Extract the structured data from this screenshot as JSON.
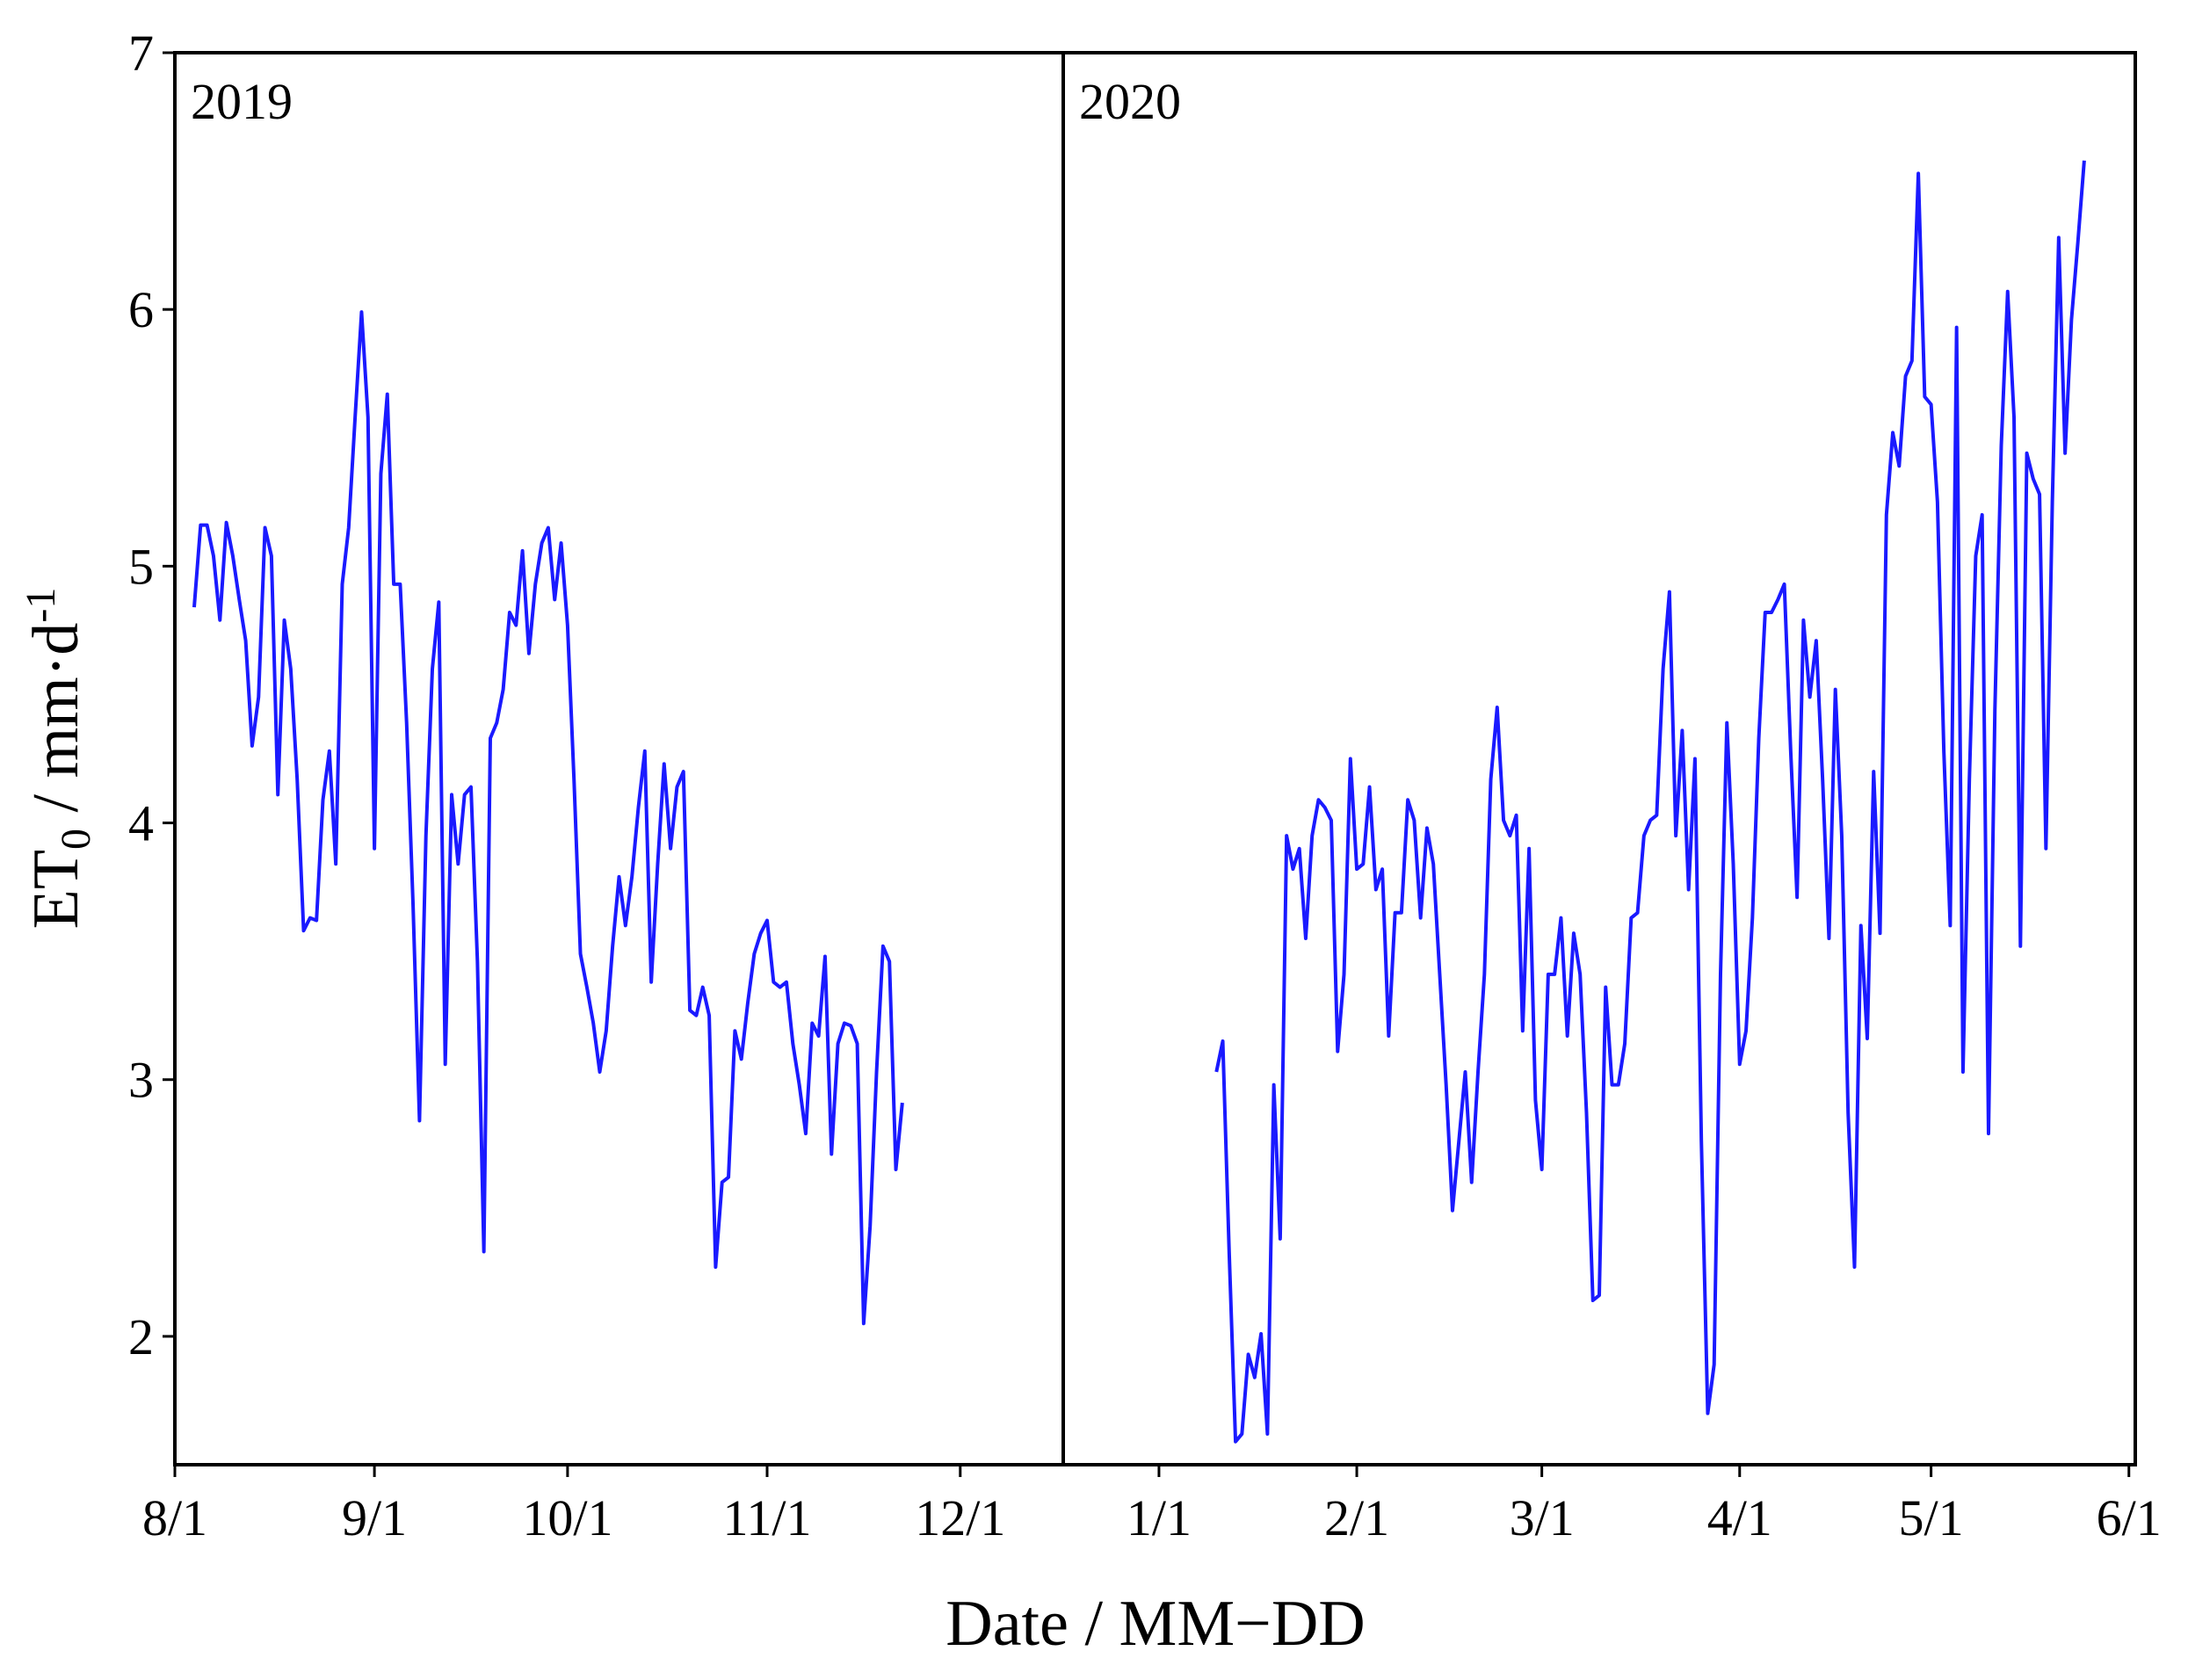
{
  "x_label": "Date / MM−DD",
  "chart_data": [
    {
      "type": "line",
      "annotation": "2019",
      "y_label": {
        "main": "ET",
        "sub": "0",
        "unit": " / mm·d",
        "sup": "-1"
      },
      "color": "#1a1aff",
      "xlim": [
        0,
        138
      ],
      "ylim": [
        1.5,
        7
      ],
      "yticks": [
        2,
        3,
        4,
        5,
        6,
        7
      ],
      "xticks": [
        {
          "value": 0,
          "label": "8/1"
        },
        {
          "value": 31,
          "label": "9/1"
        },
        {
          "value": 61,
          "label": "10/1"
        },
        {
          "value": 92,
          "label": "11/1"
        },
        {
          "value": 122,
          "label": "12/1"
        }
      ],
      "x": [
        3,
        4,
        5,
        6,
        7,
        8,
        9,
        10,
        11,
        12,
        13,
        14,
        15,
        16,
        17,
        18,
        19,
        20,
        21,
        22,
        23,
        24,
        25,
        26,
        27,
        28,
        29,
        30,
        31,
        32,
        33,
        34,
        35,
        36,
        37,
        38,
        39,
        40,
        41,
        42,
        43,
        44,
        45,
        46,
        47,
        48,
        49,
        50,
        51,
        52,
        53,
        54,
        55,
        56,
        57,
        58,
        59,
        60,
        61,
        62,
        63,
        64,
        65,
        66,
        67,
        68,
        69,
        70,
        71,
        72,
        73,
        74,
        75,
        76,
        77,
        78,
        79,
        80,
        81,
        82,
        83,
        84,
        85,
        86,
        87,
        88,
        89,
        90,
        91,
        92,
        93,
        94,
        95,
        96,
        97,
        98,
        99,
        100,
        101,
        102,
        103,
        104,
        105,
        106,
        107,
        108,
        109,
        110,
        111,
        112,
        113
      ],
      "values": [
        4.84,
        5.16,
        5.16,
        5.04,
        4.79,
        5.17,
        5.04,
        4.87,
        4.71,
        4.3,
        4.49,
        5.15,
        5.04,
        4.11,
        4.79,
        4.6,
        4.17,
        3.58,
        3.63,
        3.62,
        4.09,
        4.28,
        3.84,
        4.93,
        5.15,
        5.58,
        5.99,
        5.58,
        3.9,
        5.36,
        5.67,
        4.93,
        4.93,
        4.39,
        3.68,
        2.84,
        3.95,
        4.6,
        4.86,
        3.06,
        4.11,
        3.84,
        4.11,
        4.14,
        3.46,
        2.33,
        4.33,
        4.39,
        4.52,
        4.82,
        4.77,
        5.06,
        4.66,
        4.93,
        5.09,
        5.15,
        4.87,
        5.09,
        4.77,
        4.17,
        3.49,
        3.36,
        3.22,
        3.03,
        3.19,
        3.52,
        3.79,
        3.6,
        3.79,
        4.06,
        4.28,
        3.38,
        3.84,
        4.23,
        3.9,
        4.14,
        4.2,
        3.27,
        3.25,
        3.36,
        3.25,
        2.27,
        2.6,
        2.62,
        3.19,
        3.08,
        3.3,
        3.49,
        3.57,
        3.62,
        3.38,
        3.36,
        3.38,
        3.14,
        2.98,
        2.79,
        3.22,
        3.17,
        3.48,
        2.71,
        3.14,
        3.22,
        3.21,
        3.14,
        2.05,
        2.43,
        3.03,
        3.52,
        3.46,
        2.65,
        2.91
      ]
    },
    {
      "type": "line",
      "annotation": "2020",
      "color": "#1a1aff",
      "xlim": [
        -15,
        153
      ],
      "ylim": [
        1.5,
        7
      ],
      "xticks": [
        {
          "value": 0,
          "label": "1/1"
        },
        {
          "value": 31,
          "label": "2/1"
        },
        {
          "value": 60,
          "label": "3/1"
        },
        {
          "value": 91,
          "label": "4/1"
        },
        {
          "value": 121,
          "label": "5/1"
        },
        {
          "value": 152,
          "label": "6/1"
        }
      ],
      "x": [
        9,
        10,
        11,
        12,
        13,
        14,
        15,
        16,
        17,
        18,
        19,
        20,
        21,
        22,
        23,
        24,
        25,
        26,
        27,
        28,
        29,
        30,
        31,
        32,
        33,
        34,
        35,
        36,
        37,
        38,
        39,
        40,
        41,
        42,
        43,
        44,
        45,
        46,
        47,
        48,
        49,
        50,
        51,
        52,
        53,
        54,
        55,
        56,
        57,
        58,
        59,
        60,
        61,
        62,
        63,
        64,
        65,
        66,
        67,
        68,
        69,
        70,
        71,
        72,
        73,
        74,
        75,
        76,
        77,
        78,
        79,
        80,
        81,
        82,
        83,
        84,
        85,
        86,
        87,
        88,
        89,
        90,
        91,
        92,
        93,
        94,
        95,
        96,
        97,
        98,
        99,
        100,
        101,
        102,
        103,
        104,
        105,
        106,
        107,
        108,
        109,
        110,
        111,
        112,
        113,
        114,
        115,
        116,
        117,
        118,
        119,
        120,
        121,
        122,
        123,
        124,
        125,
        126,
        127,
        128,
        129,
        130,
        131,
        132,
        133,
        134,
        135,
        136,
        137,
        138,
        139,
        140,
        141,
        142,
        143,
        144,
        145
      ],
      "values": [
        3.03,
        3.15,
        2.33,
        1.59,
        1.62,
        1.93,
        1.84,
        2.01,
        1.62,
        2.98,
        2.38,
        3.95,
        3.82,
        3.9,
        3.55,
        3.95,
        4.09,
        4.06,
        4.01,
        3.11,
        3.41,
        4.25,
        3.82,
        3.84,
        4.14,
        3.74,
        3.82,
        3.17,
        3.65,
        3.65,
        4.09,
        4.01,
        3.63,
        3.98,
        3.84,
        3.41,
        2.98,
        2.49,
        2.76,
        3.03,
        2.6,
        3.03,
        3.41,
        4.17,
        4.45,
        4.01,
        3.95,
        4.03,
        3.19,
        3.9,
        2.92,
        2.65,
        3.41,
        3.41,
        3.63,
        3.17,
        3.57,
        3.41,
        2.87,
        2.14,
        2.16,
        3.36,
        2.98,
        2.98,
        3.14,
        3.63,
        3.65,
        3.95,
        4.01,
        4.03,
        4.6,
        4.9,
        3.95,
        4.36,
        3.74,
        4.25,
        2.76,
        1.7,
        1.89,
        3.41,
        4.39,
        3.84,
        3.06,
        3.19,
        3.63,
        4.33,
        4.82,
        4.82,
        4.87,
        4.93,
        4.28,
        3.71,
        4.79,
        4.49,
        4.71,
        4.17,
        3.55,
        4.52,
        3.95,
        2.87,
        2.27,
        3.6,
        3.16,
        4.2,
        3.57,
        5.2,
        5.52,
        5.39,
        5.74,
        5.8,
        6.53,
        5.66,
        5.63,
        5.25,
        4.28,
        3.6,
        5.93,
        3.03,
        4.17,
        5.04,
        5.2,
        2.79,
        4.44,
        5.47,
        6.07,
        5.58,
        3.52,
        5.44,
        5.34,
        5.28,
        3.9,
        5.25,
        6.28,
        5.44,
        5.96,
        6.26,
        6.58
      ]
    }
  ]
}
